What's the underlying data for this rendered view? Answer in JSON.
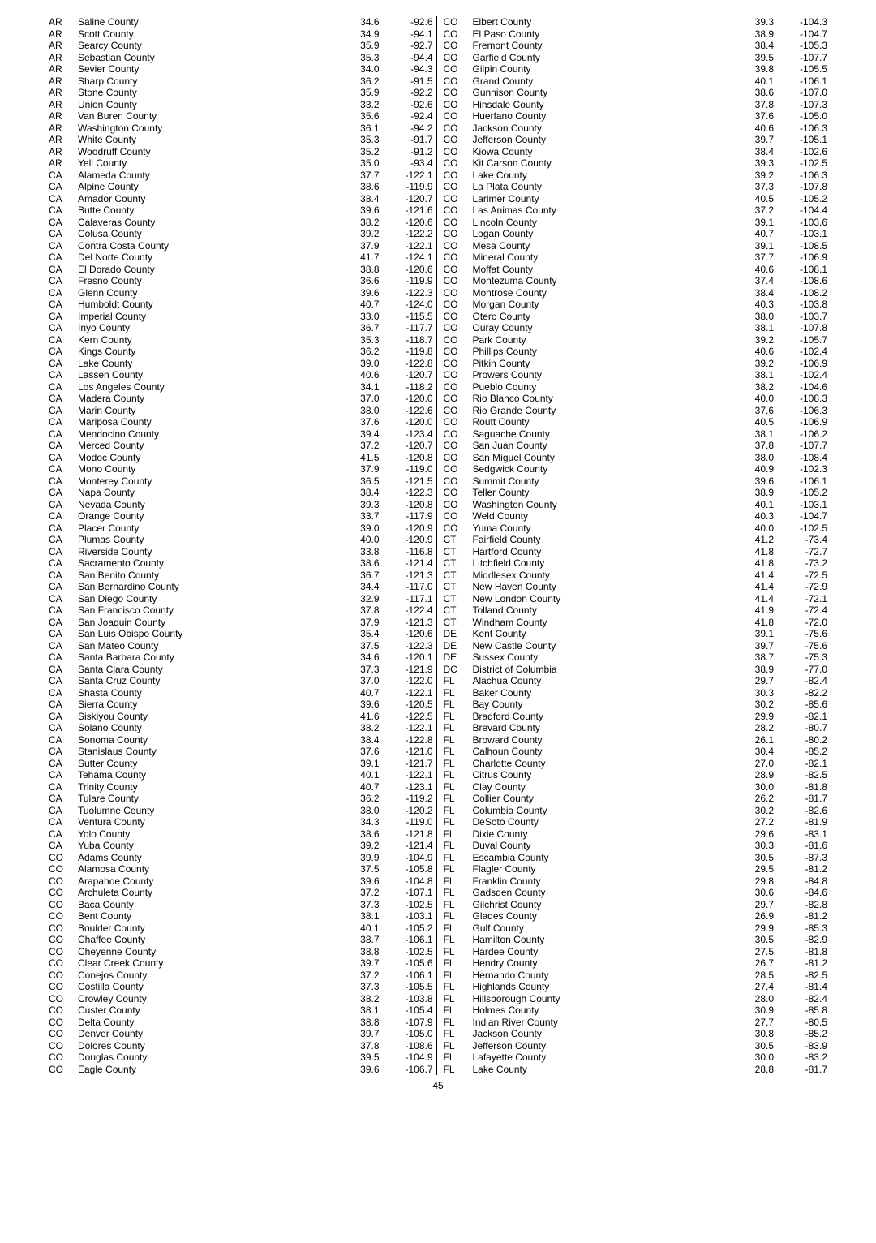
{
  "pageNumber": "45",
  "left": [
    {
      "s": "AR",
      "c": "Saline County",
      "a": "34.6",
      "b": "-92.6"
    },
    {
      "s": "AR",
      "c": "Scott County",
      "a": "34.9",
      "b": "-94.1"
    },
    {
      "s": "AR",
      "c": "Searcy County",
      "a": "35.9",
      "b": "-92.7"
    },
    {
      "s": "AR",
      "c": "Sebastian County",
      "a": "35.3",
      "b": "-94.4"
    },
    {
      "s": "AR",
      "c": "Sevier County",
      "a": "34.0",
      "b": "-94.3"
    },
    {
      "s": "AR",
      "c": "Sharp County",
      "a": "36.2",
      "b": "-91.5"
    },
    {
      "s": "AR",
      "c": "Stone County",
      "a": "35.9",
      "b": "-92.2"
    },
    {
      "s": "AR",
      "c": "Union County",
      "a": "33.2",
      "b": "-92.6"
    },
    {
      "s": "AR",
      "c": "Van Buren County",
      "a": "35.6",
      "b": "-92.4"
    },
    {
      "s": "AR",
      "c": "Washington County",
      "a": "36.1",
      "b": "-94.2"
    },
    {
      "s": "AR",
      "c": "White County",
      "a": "35.3",
      "b": "-91.7"
    },
    {
      "s": "AR",
      "c": "Woodruff County",
      "a": "35.2",
      "b": "-91.2"
    },
    {
      "s": "AR",
      "c": "Yell County",
      "a": "35.0",
      "b": "-93.4"
    },
    {
      "s": "CA",
      "c": "Alameda County",
      "a": "37.7",
      "b": "-122.1"
    },
    {
      "s": "CA",
      "c": "Alpine County",
      "a": "38.6",
      "b": "-119.9"
    },
    {
      "s": "CA",
      "c": "Amador County",
      "a": "38.4",
      "b": "-120.7"
    },
    {
      "s": "CA",
      "c": "Butte County",
      "a": "39.6",
      "b": "-121.6"
    },
    {
      "s": "CA",
      "c": "Calaveras County",
      "a": "38.2",
      "b": "-120.6"
    },
    {
      "s": "CA",
      "c": "Colusa County",
      "a": "39.2",
      "b": "-122.2"
    },
    {
      "s": "CA",
      "c": "Contra Costa County",
      "a": "37.9",
      "b": "-122.1"
    },
    {
      "s": "CA",
      "c": "Del Norte County",
      "a": "41.7",
      "b": "-124.1"
    },
    {
      "s": "CA",
      "c": "El Dorado County",
      "a": "38.8",
      "b": "-120.6"
    },
    {
      "s": "CA",
      "c": "Fresno County",
      "a": "36.6",
      "b": "-119.9"
    },
    {
      "s": "CA",
      "c": "Glenn County",
      "a": "39.6",
      "b": "-122.3"
    },
    {
      "s": "CA",
      "c": "Humboldt County",
      "a": "40.7",
      "b": "-124.0"
    },
    {
      "s": "CA",
      "c": "Imperial County",
      "a": "33.0",
      "b": "-115.5"
    },
    {
      "s": "CA",
      "c": "Inyo County",
      "a": "36.7",
      "b": "-117.7"
    },
    {
      "s": "CA",
      "c": "Kern County",
      "a": "35.3",
      "b": "-118.7"
    },
    {
      "s": "CA",
      "c": "Kings County",
      "a": "36.2",
      "b": "-119.8"
    },
    {
      "s": "CA",
      "c": "Lake County",
      "a": "39.0",
      "b": "-122.8"
    },
    {
      "s": "CA",
      "c": "Lassen County",
      "a": "40.6",
      "b": "-120.7"
    },
    {
      "s": "CA",
      "c": "Los Angeles County",
      "a": "34.1",
      "b": "-118.2"
    },
    {
      "s": "CA",
      "c": "Madera County",
      "a": "37.0",
      "b": "-120.0"
    },
    {
      "s": "CA",
      "c": "Marin County",
      "a": "38.0",
      "b": "-122.6"
    },
    {
      "s": "CA",
      "c": "Mariposa County",
      "a": "37.6",
      "b": "-120.0"
    },
    {
      "s": "CA",
      "c": "Mendocino County",
      "a": "39.4",
      "b": "-123.4"
    },
    {
      "s": "CA",
      "c": "Merced County",
      "a": "37.2",
      "b": "-120.7"
    },
    {
      "s": "CA",
      "c": "Modoc County",
      "a": "41.5",
      "b": "-120.8"
    },
    {
      "s": "CA",
      "c": "Mono County",
      "a": "37.9",
      "b": "-119.0"
    },
    {
      "s": "CA",
      "c": "Monterey County",
      "a": "36.5",
      "b": "-121.5"
    },
    {
      "s": "CA",
      "c": "Napa County",
      "a": "38.4",
      "b": "-122.3"
    },
    {
      "s": "CA",
      "c": "Nevada County",
      "a": "39.3",
      "b": "-120.8"
    },
    {
      "s": "CA",
      "c": "Orange County",
      "a": "33.7",
      "b": "-117.9"
    },
    {
      "s": "CA",
      "c": "Placer County",
      "a": "39.0",
      "b": "-120.9"
    },
    {
      "s": "CA",
      "c": "Plumas County",
      "a": "40.0",
      "b": "-120.9"
    },
    {
      "s": "CA",
      "c": "Riverside County",
      "a": "33.8",
      "b": "-116.8"
    },
    {
      "s": "CA",
      "c": "Sacramento County",
      "a": "38.6",
      "b": "-121.4"
    },
    {
      "s": "CA",
      "c": "San Benito County",
      "a": "36.7",
      "b": "-121.3"
    },
    {
      "s": "CA",
      "c": "San Bernardino County",
      "a": "34.4",
      "b": "-117.0"
    },
    {
      "s": "CA",
      "c": "San Diego County",
      "a": "32.9",
      "b": "-117.1"
    },
    {
      "s": "CA",
      "c": "San Francisco County",
      "a": "37.8",
      "b": "-122.4"
    },
    {
      "s": "CA",
      "c": "San Joaquin County",
      "a": "37.9",
      "b": "-121.3"
    },
    {
      "s": "CA",
      "c": "San Luis Obispo County",
      "a": "35.4",
      "b": "-120.6"
    },
    {
      "s": "CA",
      "c": "San Mateo County",
      "a": "37.5",
      "b": "-122.3"
    },
    {
      "s": "CA",
      "c": "Santa Barbara County",
      "a": "34.6",
      "b": "-120.1"
    },
    {
      "s": "CA",
      "c": "Santa Clara County",
      "a": "37.3",
      "b": "-121.9"
    },
    {
      "s": "CA",
      "c": "Santa Cruz County",
      "a": "37.0",
      "b": "-122.0"
    },
    {
      "s": "CA",
      "c": "Shasta County",
      "a": "40.7",
      "b": "-122.1"
    },
    {
      "s": "CA",
      "c": "Sierra County",
      "a": "39.6",
      "b": "-120.5"
    },
    {
      "s": "CA",
      "c": "Siskiyou County",
      "a": "41.6",
      "b": "-122.5"
    },
    {
      "s": "CA",
      "c": "Solano County",
      "a": "38.2",
      "b": "-122.1"
    },
    {
      "s": "CA",
      "c": "Sonoma County",
      "a": "38.4",
      "b": "-122.8"
    },
    {
      "s": "CA",
      "c": "Stanislaus County",
      "a": "37.6",
      "b": "-121.0"
    },
    {
      "s": "CA",
      "c": "Sutter County",
      "a": "39.1",
      "b": "-121.7"
    },
    {
      "s": "CA",
      "c": "Tehama County",
      "a": "40.1",
      "b": "-122.1"
    },
    {
      "s": "CA",
      "c": "Trinity County",
      "a": "40.7",
      "b": "-123.1"
    },
    {
      "s": "CA",
      "c": "Tulare County",
      "a": "36.2",
      "b": "-119.2"
    },
    {
      "s": "CA",
      "c": "Tuolumne County",
      "a": "38.0",
      "b": "-120.2"
    },
    {
      "s": "CA",
      "c": "Ventura County",
      "a": "34.3",
      "b": "-119.0"
    },
    {
      "s": "CA",
      "c": "Yolo County",
      "a": "38.6",
      "b": "-121.8"
    },
    {
      "s": "CA",
      "c": "Yuba County",
      "a": "39.2",
      "b": "-121.4"
    },
    {
      "s": "CO",
      "c": "Adams County",
      "a": "39.9",
      "b": "-104.9"
    },
    {
      "s": "CO",
      "c": "Alamosa County",
      "a": "37.5",
      "b": "-105.8"
    },
    {
      "s": "CO",
      "c": "Arapahoe County",
      "a": "39.6",
      "b": "-104.8"
    },
    {
      "s": "CO",
      "c": "Archuleta County",
      "a": "37.2",
      "b": "-107.1"
    },
    {
      "s": "CO",
      "c": "Baca County",
      "a": "37.3",
      "b": "-102.5"
    },
    {
      "s": "CO",
      "c": "Bent County",
      "a": "38.1",
      "b": "-103.1"
    },
    {
      "s": "CO",
      "c": "Boulder County",
      "a": "40.1",
      "b": "-105.2"
    },
    {
      "s": "CO",
      "c": "Chaffee County",
      "a": "38.7",
      "b": "-106.1"
    },
    {
      "s": "CO",
      "c": "Cheyenne County",
      "a": "38.8",
      "b": "-102.5"
    },
    {
      "s": "CO",
      "c": "Clear Creek County",
      "a": "39.7",
      "b": "-105.6"
    },
    {
      "s": "CO",
      "c": "Conejos County",
      "a": "37.2",
      "b": "-106.1"
    },
    {
      "s": "CO",
      "c": "Costilla County",
      "a": "37.3",
      "b": "-105.5"
    },
    {
      "s": "CO",
      "c": "Crowley County",
      "a": "38.2",
      "b": "-103.8"
    },
    {
      "s": "CO",
      "c": "Custer County",
      "a": "38.1",
      "b": "-105.4"
    },
    {
      "s": "CO",
      "c": "Delta County",
      "a": "38.8",
      "b": "-107.9"
    },
    {
      "s": "CO",
      "c": "Denver County",
      "a": "39.7",
      "b": "-105.0"
    },
    {
      "s": "CO",
      "c": "Dolores County",
      "a": "37.8",
      "b": "-108.6"
    },
    {
      "s": "CO",
      "c": "Douglas County",
      "a": "39.5",
      "b": "-104.9"
    },
    {
      "s": "CO",
      "c": "Eagle County",
      "a": "39.6",
      "b": "-106.7"
    }
  ],
  "right": [
    {
      "s": "CO",
      "c": "Elbert County",
      "a": "39.3",
      "b": "-104.3"
    },
    {
      "s": "CO",
      "c": "El Paso County",
      "a": "38.9",
      "b": "-104.7"
    },
    {
      "s": "CO",
      "c": "Fremont County",
      "a": "38.4",
      "b": "-105.3"
    },
    {
      "s": "CO",
      "c": "Garfield County",
      "a": "39.5",
      "b": "-107.7"
    },
    {
      "s": "CO",
      "c": "Gilpin County",
      "a": "39.8",
      "b": "-105.5"
    },
    {
      "s": "CO",
      "c": "Grand County",
      "a": "40.1",
      "b": "-106.1"
    },
    {
      "s": "CO",
      "c": "Gunnison County",
      "a": "38.6",
      "b": "-107.0"
    },
    {
      "s": "CO",
      "c": "Hinsdale County",
      "a": "37.8",
      "b": "-107.3"
    },
    {
      "s": "CO",
      "c": "Huerfano County",
      "a": "37.6",
      "b": "-105.0"
    },
    {
      "s": "CO",
      "c": "Jackson County",
      "a": "40.6",
      "b": "-106.3"
    },
    {
      "s": "CO",
      "c": "Jefferson County",
      "a": "39.7",
      "b": "-105.1"
    },
    {
      "s": "CO",
      "c": "Kiowa County",
      "a": "38.4",
      "b": "-102.6"
    },
    {
      "s": "CO",
      "c": "Kit Carson County",
      "a": "39.3",
      "b": "-102.5"
    },
    {
      "s": "CO",
      "c": "Lake County",
      "a": "39.2",
      "b": "-106.3"
    },
    {
      "s": "CO",
      "c": "La Plata County",
      "a": "37.3",
      "b": "-107.8"
    },
    {
      "s": "CO",
      "c": "Larimer County",
      "a": "40.5",
      "b": "-105.2"
    },
    {
      "s": "CO",
      "c": "Las Animas County",
      "a": "37.2",
      "b": "-104.4"
    },
    {
      "s": "CO",
      "c": "Lincoln County",
      "a": "39.1",
      "b": "-103.6"
    },
    {
      "s": "CO",
      "c": "Logan County",
      "a": "40.7",
      "b": "-103.1"
    },
    {
      "s": "CO",
      "c": "Mesa County",
      "a": "39.1",
      "b": "-108.5"
    },
    {
      "s": "CO",
      "c": "Mineral County",
      "a": "37.7",
      "b": "-106.9"
    },
    {
      "s": "CO",
      "c": "Moffat County",
      "a": "40.6",
      "b": "-108.1"
    },
    {
      "s": "CO",
      "c": "Montezuma County",
      "a": "37.4",
      "b": "-108.6"
    },
    {
      "s": "CO",
      "c": "Montrose County",
      "a": "38.4",
      "b": "-108.2"
    },
    {
      "s": "CO",
      "c": "Morgan County",
      "a": "40.3",
      "b": "-103.8"
    },
    {
      "s": "CO",
      "c": "Otero County",
      "a": "38.0",
      "b": "-103.7"
    },
    {
      "s": "CO",
      "c": "Ouray County",
      "a": "38.1",
      "b": "-107.8"
    },
    {
      "s": "CO",
      "c": "Park County",
      "a": "39.2",
      "b": "-105.7"
    },
    {
      "s": "CO",
      "c": "Phillips County",
      "a": "40.6",
      "b": "-102.4"
    },
    {
      "s": "CO",
      "c": "Pitkin County",
      "a": "39.2",
      "b": "-106.9"
    },
    {
      "s": "CO",
      "c": "Prowers County",
      "a": "38.1",
      "b": "-102.4"
    },
    {
      "s": "CO",
      "c": "Pueblo County",
      "a": "38.2",
      "b": "-104.6"
    },
    {
      "s": "CO",
      "c": "Rio Blanco County",
      "a": "40.0",
      "b": "-108.3"
    },
    {
      "s": "CO",
      "c": "Rio Grande County",
      "a": "37.6",
      "b": "-106.3"
    },
    {
      "s": "CO",
      "c": "Routt County",
      "a": "40.5",
      "b": "-106.9"
    },
    {
      "s": "CO",
      "c": "Saguache County",
      "a": "38.1",
      "b": "-106.2"
    },
    {
      "s": "CO",
      "c": "San Juan County",
      "a": "37.8",
      "b": "-107.7"
    },
    {
      "s": "CO",
      "c": "San Miguel County",
      "a": "38.0",
      "b": "-108.4"
    },
    {
      "s": "CO",
      "c": "Sedgwick County",
      "a": "40.9",
      "b": "-102.3"
    },
    {
      "s": "CO",
      "c": "Summit County",
      "a": "39.6",
      "b": "-106.1"
    },
    {
      "s": "CO",
      "c": "Teller County",
      "a": "38.9",
      "b": "-105.2"
    },
    {
      "s": "CO",
      "c": "Washington County",
      "a": "40.1",
      "b": "-103.1"
    },
    {
      "s": "CO",
      "c": "Weld County",
      "a": "40.3",
      "b": "-104.7"
    },
    {
      "s": "CO",
      "c": "Yuma County",
      "a": "40.0",
      "b": "-102.5"
    },
    {
      "s": "CT",
      "c": "Fairfield County",
      "a": "41.2",
      "b": "-73.4"
    },
    {
      "s": "CT",
      "c": "Hartford County",
      "a": "41.8",
      "b": "-72.7"
    },
    {
      "s": "CT",
      "c": "Litchfield County",
      "a": "41.8",
      "b": "-73.2"
    },
    {
      "s": "CT",
      "c": "Middlesex County",
      "a": "41.4",
      "b": "-72.5"
    },
    {
      "s": "CT",
      "c": "New Haven County",
      "a": "41.4",
      "b": "-72.9"
    },
    {
      "s": "CT",
      "c": "New London County",
      "a": "41.4",
      "b": "-72.1"
    },
    {
      "s": "CT",
      "c": "Tolland County",
      "a": "41.9",
      "b": "-72.4"
    },
    {
      "s": "CT",
      "c": "Windham County",
      "a": "41.8",
      "b": "-72.0"
    },
    {
      "s": "DE",
      "c": "Kent County",
      "a": "39.1",
      "b": "-75.6"
    },
    {
      "s": "DE",
      "c": "New Castle County",
      "a": "39.7",
      "b": "-75.6"
    },
    {
      "s": "DE",
      "c": "Sussex County",
      "a": "38.7",
      "b": "-75.3"
    },
    {
      "s": "DC",
      "c": "District of Columbia",
      "a": "38.9",
      "b": "-77.0"
    },
    {
      "s": "FL",
      "c": "Alachua County",
      "a": "29.7",
      "b": "-82.4"
    },
    {
      "s": "FL",
      "c": "Baker County",
      "a": "30.3",
      "b": "-82.2"
    },
    {
      "s": "FL",
      "c": "Bay County",
      "a": "30.2",
      "b": "-85.6"
    },
    {
      "s": "FL",
      "c": "Bradford County",
      "a": "29.9",
      "b": "-82.1"
    },
    {
      "s": "FL",
      "c": "Brevard County",
      "a": "28.2",
      "b": "-80.7"
    },
    {
      "s": "FL",
      "c": "Broward County",
      "a": "26.1",
      "b": "-80.2"
    },
    {
      "s": "FL",
      "c": "Calhoun County",
      "a": "30.4",
      "b": "-85.2"
    },
    {
      "s": "FL",
      "c": "Charlotte County",
      "a": "27.0",
      "b": "-82.1"
    },
    {
      "s": "FL",
      "c": "Citrus County",
      "a": "28.9",
      "b": "-82.5"
    },
    {
      "s": "FL",
      "c": "Clay County",
      "a": "30.0",
      "b": "-81.8"
    },
    {
      "s": "FL",
      "c": "Collier County",
      "a": "26.2",
      "b": "-81.7"
    },
    {
      "s": "FL",
      "c": "Columbia County",
      "a": "30.2",
      "b": "-82.6"
    },
    {
      "s": "FL",
      "c": "DeSoto County",
      "a": "27.2",
      "b": "-81.9"
    },
    {
      "s": "FL",
      "c": "Dixie County",
      "a": "29.6",
      "b": "-83.1"
    },
    {
      "s": "FL",
      "c": "Duval County",
      "a": "30.3",
      "b": "-81.6"
    },
    {
      "s": "FL",
      "c": "Escambia County",
      "a": "30.5",
      "b": "-87.3"
    },
    {
      "s": "FL",
      "c": "Flagler County",
      "a": "29.5",
      "b": "-81.2"
    },
    {
      "s": "FL",
      "c": "Franklin County",
      "a": "29.8",
      "b": "-84.8"
    },
    {
      "s": "FL",
      "c": "Gadsden County",
      "a": "30.6",
      "b": "-84.6"
    },
    {
      "s": "FL",
      "c": "Gilchrist County",
      "a": "29.7",
      "b": "-82.8"
    },
    {
      "s": "FL",
      "c": "Glades County",
      "a": "26.9",
      "b": "-81.2"
    },
    {
      "s": "FL",
      "c": "Gulf County",
      "a": "29.9",
      "b": "-85.3"
    },
    {
      "s": "FL",
      "c": "Hamilton County",
      "a": "30.5",
      "b": "-82.9"
    },
    {
      "s": "FL",
      "c": "Hardee County",
      "a": "27.5",
      "b": "-81.8"
    },
    {
      "s": "FL",
      "c": "Hendry County",
      "a": "26.7",
      "b": "-81.2"
    },
    {
      "s": "FL",
      "c": "Hernando County",
      "a": "28.5",
      "b": "-82.5"
    },
    {
      "s": "FL",
      "c": "Highlands County",
      "a": "27.4",
      "b": "-81.4"
    },
    {
      "s": "FL",
      "c": "Hillsborough County",
      "a": "28.0",
      "b": "-82.4"
    },
    {
      "s": "FL",
      "c": "Holmes County",
      "a": "30.9",
      "b": "-85.8"
    },
    {
      "s": "FL",
      "c": "Indian River County",
      "a": "27.7",
      "b": "-80.5"
    },
    {
      "s": "FL",
      "c": "Jackson County",
      "a": "30.8",
      "b": "-85.2"
    },
    {
      "s": "FL",
      "c": "Jefferson County",
      "a": "30.5",
      "b": "-83.9"
    },
    {
      "s": "FL",
      "c": "Lafayette County",
      "a": "30.0",
      "b": "-83.2"
    },
    {
      "s": "FL",
      "c": "Lake County",
      "a": "28.8",
      "b": "-81.7"
    }
  ]
}
